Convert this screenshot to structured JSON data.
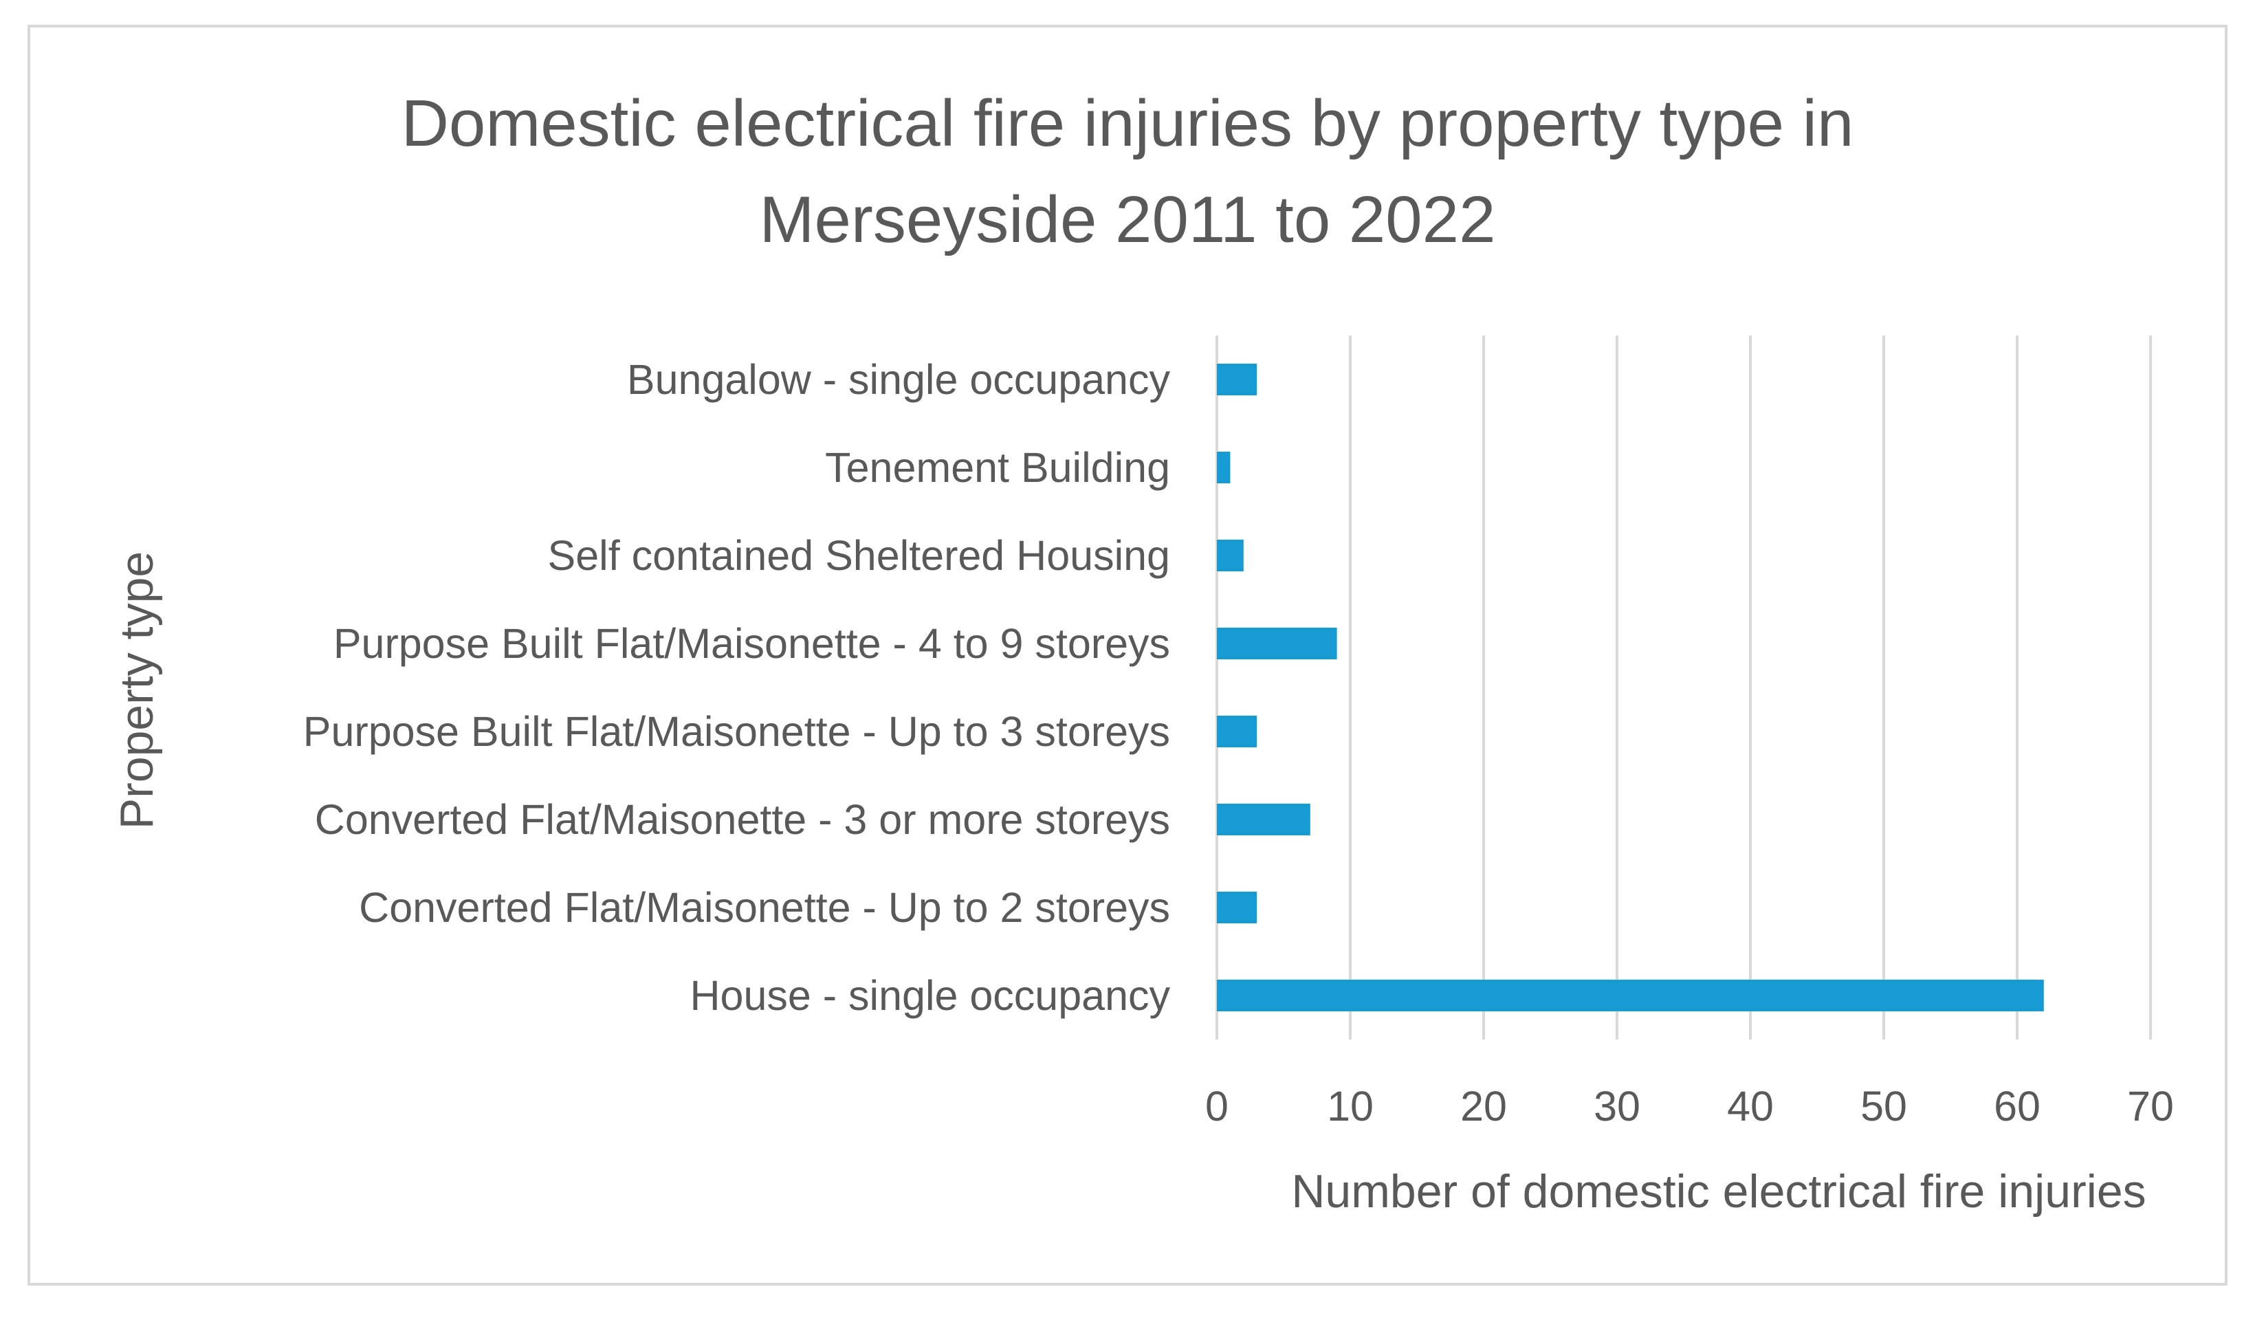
{
  "chart_data": {
    "type": "bar",
    "orientation": "horizontal",
    "title_lines": [
      "Domestic electrical fire injuries by property type in",
      "Merseyside 2011 to 2022"
    ],
    "xlabel": "Number of domestic electrical fire injuries",
    "ylabel": "Property type",
    "categories": [
      "Bungalow - single occupancy",
      "Tenement Building",
      "Self contained Sheltered Housing",
      "Purpose Built Flat/Maisonette - 4 to 9 storeys",
      "Purpose Built Flat/Maisonette - Up to 3 storeys",
      "Converted Flat/Maisonette - 3 or more storeys",
      "Converted Flat/Maisonette - Up to 2 storeys",
      "House - single occupancy"
    ],
    "values": [
      3,
      1,
      2,
      9,
      3,
      7,
      3,
      62
    ],
    "xlim": [
      0,
      70
    ],
    "xticks": [
      "0",
      "10",
      "20",
      "30",
      "40",
      "50",
      "60",
      "70"
    ],
    "grid": "vertical",
    "bar_color": "#169bd5"
  }
}
